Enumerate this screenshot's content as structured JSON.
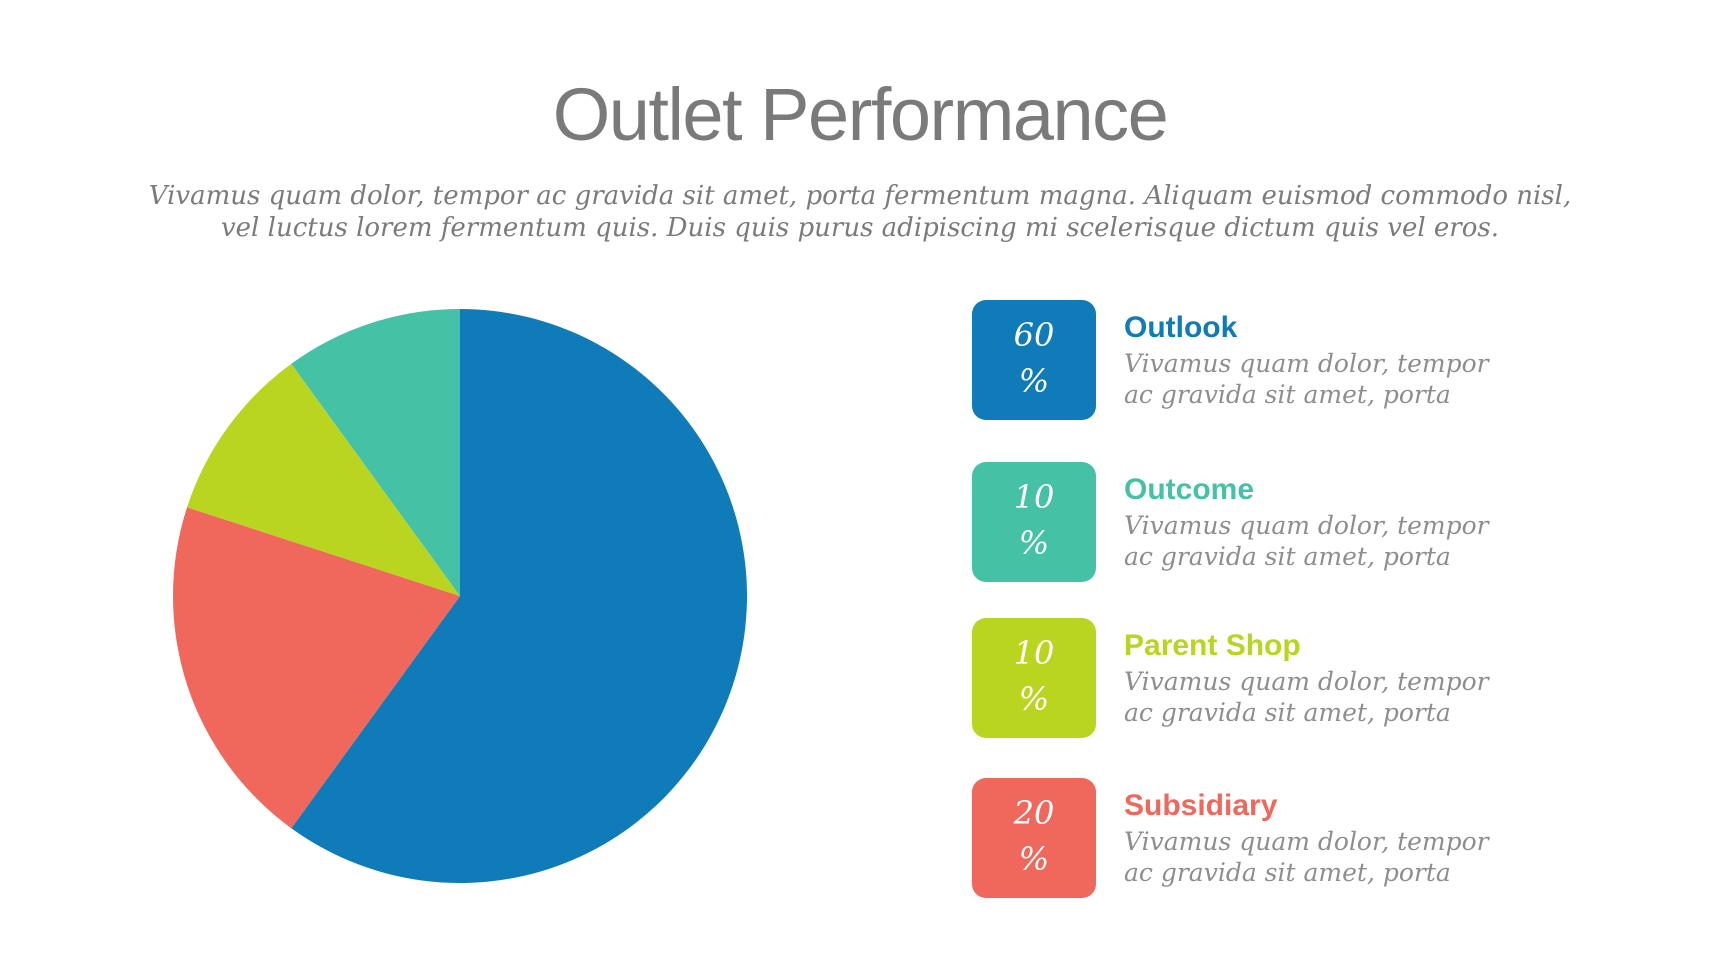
{
  "title": "Outlet Performance",
  "subtitle": {
    "line1": "Vivamus quam dolor, tempor ac gravida sit amet, porta fermentum magna. Aliquam euismod commodo nisl,",
    "line2": "vel luctus lorem fermentum quis. Duis quis purus adipiscing mi scelerisque dictum quis vel eros."
  },
  "chart_data": {
    "type": "pie",
    "series": [
      {
        "name": "Outlook",
        "value": 60,
        "color": "#0f7bb8"
      },
      {
        "name": "Subsidiary",
        "value": 20,
        "color": "#f0675b"
      },
      {
        "name": "Parent Shop",
        "value": 10,
        "color": "#b9d51f"
      },
      {
        "name": "Outcome",
        "value": 10,
        "color": "#45c2a5"
      }
    ],
    "start": "top",
    "direction": "clockwise"
  },
  "legend": [
    {
      "name": "Outlook",
      "value": "60",
      "unit": "%",
      "color": "#0f7bb8",
      "desc_line1": "Vivamus quam dolor, tempor",
      "desc_line2": "ac gravida sit amet, porta"
    },
    {
      "name": "Outcome",
      "value": "10",
      "unit": "%",
      "color": "#45c2a5",
      "desc_line1": "Vivamus quam dolor, tempor",
      "desc_line2": "ac gravida sit amet, porta"
    },
    {
      "name": "Parent Shop",
      "value": "10",
      "unit": "%",
      "color": "#b9d51f",
      "desc_line1": "Vivamus quam dolor, tempor",
      "desc_line2": "ac gravida sit amet, porta"
    },
    {
      "name": "Subsidiary",
      "value": "20",
      "unit": "%",
      "color": "#f0675b",
      "desc_line1": "Vivamus quam dolor, tempor",
      "desc_line2": "ac gravida sit amet, porta"
    }
  ]
}
